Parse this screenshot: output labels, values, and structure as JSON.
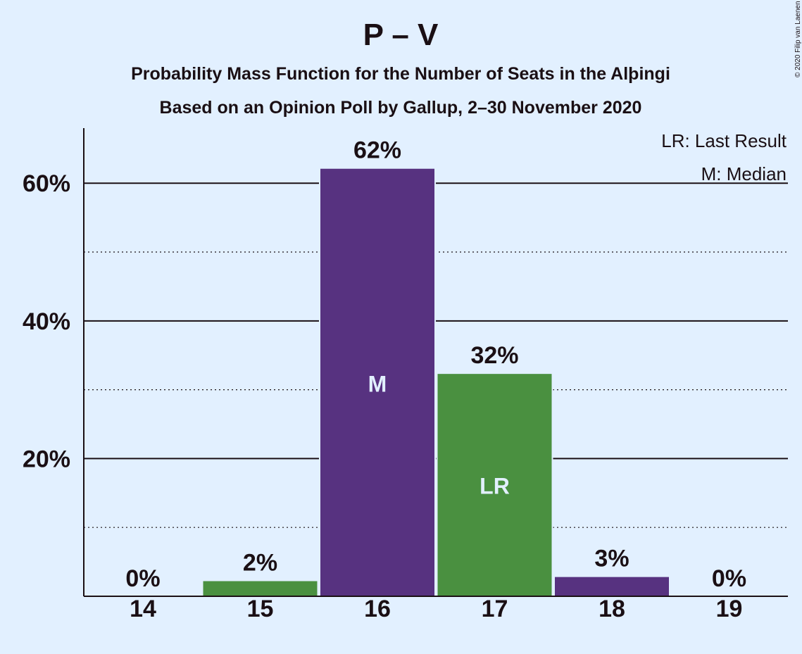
{
  "chart_data": {
    "type": "bar",
    "title": "P – V",
    "subtitle_line1": "Probability Mass Function for the Number of Seats in the Alþingi",
    "subtitle_line2": "Based on an Opinion Poll by Gallup, 2–30 November 2020",
    "copyright": "© 2020 Filip van Laenen",
    "categories": [
      "14",
      "15",
      "16",
      "17",
      "18",
      "19"
    ],
    "values": [
      0,
      2.3,
      62.2,
      32.4,
      2.9,
      0
    ],
    "value_labels": [
      "0%",
      "2%",
      "62%",
      "32%",
      "3%",
      "0%"
    ],
    "bar_colors": [
      "#4a9040",
      "#4a9040",
      "#573280",
      "#4a9040",
      "#573280",
      "#573280"
    ],
    "bar_markers": [
      "",
      "",
      "M",
      "LR",
      "",
      ""
    ],
    "ylim": [
      0,
      68
    ],
    "yticks_major": [
      20,
      40,
      60
    ],
    "ytick_labels": [
      "20%",
      "40%",
      "60%"
    ],
    "yticks_minor": [
      10,
      30,
      50
    ],
    "grid": true,
    "legend": {
      "position": "top-right",
      "entries": [
        "LR: Last Result",
        "M: Median"
      ]
    }
  }
}
